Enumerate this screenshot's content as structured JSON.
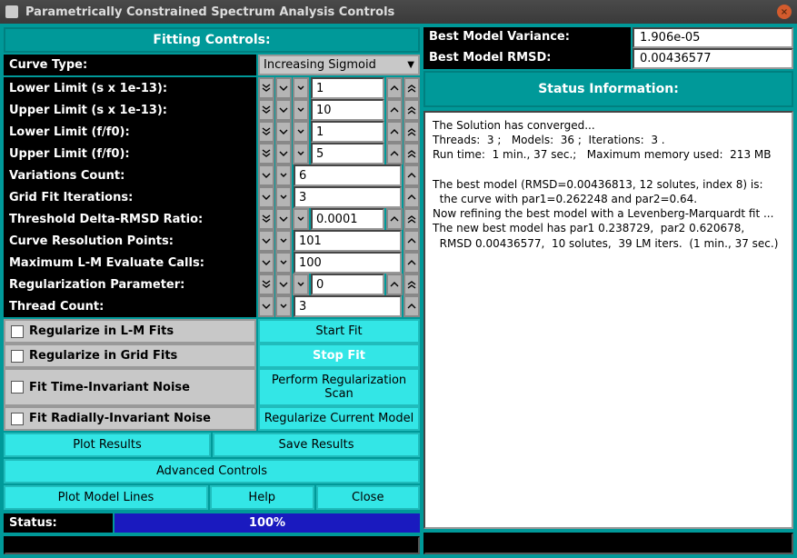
{
  "window": {
    "title": "Parametrically Constrained Spectrum Analysis Controls"
  },
  "left": {
    "header": "Fitting Controls:",
    "curve_type_label": "Curve Type:",
    "curve_type_value": "Increasing Sigmoid",
    "params": [
      {
        "label": "Lower Limit (s x 1e-13):",
        "value": "1",
        "btns": 5
      },
      {
        "label": "Upper Limit (s x 1e-13):",
        "value": "10",
        "btns": 5
      },
      {
        "label": "Lower Limit (f/f0):",
        "value": "1",
        "btns": 5
      },
      {
        "label": "Upper Limit (f/f0):",
        "value": "5",
        "btns": 5
      },
      {
        "label": "Variations Count:",
        "value": "6",
        "btns": 3
      },
      {
        "label": "Grid Fit Iterations:",
        "value": "3",
        "btns": 3
      },
      {
        "label": "Threshold Delta-RMSD Ratio:",
        "value": "0.0001",
        "btns": 5
      },
      {
        "label": "Curve Resolution Points:",
        "value": "101",
        "btns": 3
      },
      {
        "label": "Maximum L-M Evaluate Calls:",
        "value": "100",
        "btns": 3
      },
      {
        "label": "Regularization Parameter:",
        "value": "0",
        "btns": 5
      },
      {
        "label": "Thread Count:",
        "value": "3",
        "btns": 3
      }
    ],
    "check_rows": [
      {
        "check": "Regularize in L-M Fits",
        "button": "Start Fit",
        "bold": false
      },
      {
        "check": "Regularize in Grid Fits",
        "button": "Stop Fit",
        "bold": true
      },
      {
        "check": "Fit Time-Invariant Noise",
        "button": "Perform Regularization Scan",
        "bold": false
      },
      {
        "check": "Fit Radially-Invariant Noise",
        "button": "Regularize Current Model",
        "bold": false
      }
    ],
    "btn_plot_results": "Plot Results",
    "btn_save_results": "Save Results",
    "btn_advanced": "Advanced Controls",
    "btn_plot_model": "Plot Model Lines",
    "btn_help": "Help",
    "btn_close": "Close",
    "status_label": "Status:",
    "progress_text": "100%"
  },
  "right": {
    "kv": [
      {
        "label": "Best Model Variance:",
        "value": "1.906e-05"
      },
      {
        "label": "Best Model RMSD:",
        "value": "0.00436577"
      }
    ],
    "status_header": "Status Information:",
    "status_text": "The Solution has converged...\nThreads:  3 ;   Models:  36 ;  Iterations:  3 .\nRun time:  1 min., 37 sec.;   Maximum memory used:  213 MB\n\nThe best model (RMSD=0.00436813, 12 solutes, index 8) is:\n  the curve with par1=0.262248 and par2=0.64.\nNow refining the best model with a Levenberg-Marquardt fit ...\nThe new best model has par1 0.238729,  par2 0.620678,\n  RMSD 0.00436577,  10 solutes,  39 LM iters.  (1 min., 37 sec.)\n"
  },
  "colors": {
    "teal": "#009999",
    "teal_border": "#008080",
    "cyan_btn": "#33e6e6",
    "black": "#000000",
    "white": "#ffffff",
    "progress_blue": "#1a1abf",
    "gray_cell": "#c8c8c8"
  }
}
